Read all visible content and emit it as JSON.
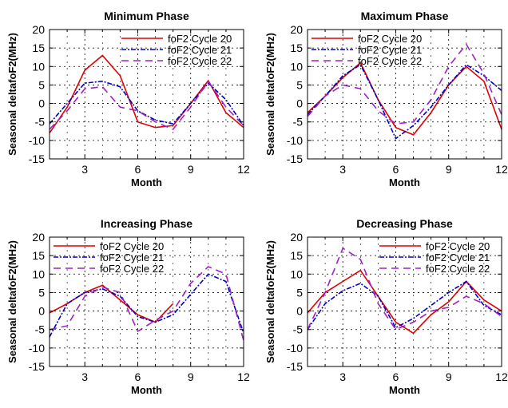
{
  "chart_data": [
    {
      "type": "line",
      "title": "Minimum Phase",
      "xlabel": "Month",
      "ylabel": "Seasonal deltafoF2(MHz)",
      "xlim": [
        1,
        12
      ],
      "ylim": [
        -15,
        20
      ],
      "xticks": [
        3,
        6,
        9,
        12
      ],
      "yticks": [
        -15,
        -10,
        -5,
        0,
        5,
        10,
        15,
        20
      ],
      "grid": true,
      "legend_position": "top-right",
      "x": [
        1,
        2,
        3,
        4,
        5,
        6,
        7,
        8,
        9,
        10,
        11,
        12
      ],
      "series": [
        {
          "name": "foF2 Cycle 20",
          "color": "#e00000",
          "dash": "solid",
          "values": [
            -8,
            -1,
            9,
            13,
            7.5,
            -5,
            -6.5,
            -6,
            0,
            6.2,
            -2.5,
            -6.5
          ]
        },
        {
          "name": "foF2 Cycle 21",
          "color": "#0000c8",
          "dash": "dot-dash",
          "values": [
            -5.5,
            0,
            5.5,
            6,
            4.5,
            -2,
            -4.5,
            -5.5,
            0,
            5.5,
            1,
            -6
          ]
        },
        {
          "name": "foF2 Cycle 22",
          "color": "#a020c0",
          "dash": "dashed",
          "values": [
            -7,
            -2,
            4,
            4.5,
            -1,
            -2,
            -5,
            -7,
            -1,
            6,
            -1,
            -6
          ]
        }
      ]
    },
    {
      "type": "line",
      "title": "Maximum Phase",
      "xlabel": "Month",
      "ylabel": "Seasonal deltafoF2(MHz)",
      "xlim": [
        1,
        12
      ],
      "ylim": [
        -15,
        20
      ],
      "xticks": [
        3,
        6,
        9,
        12
      ],
      "yticks": [
        -15,
        -10,
        -5,
        0,
        5,
        10,
        15,
        20
      ],
      "grid": true,
      "legend_position": "top-left",
      "x": [
        1,
        2,
        3,
        4,
        5,
        6,
        7,
        8,
        9,
        10,
        11,
        12
      ],
      "series": [
        {
          "name": "foF2 Cycle 20",
          "color": "#e00000",
          "dash": "solid",
          "values": [
            -2.5,
            2,
            7,
            11,
            1,
            -6.5,
            -8.5,
            -2.5,
            5,
            10,
            6,
            -7
          ]
        },
        {
          "name": "foF2 Cycle 21",
          "color": "#0000c8",
          "dash": "dot-dash",
          "values": [
            -3,
            2,
            7.5,
            10.5,
            1,
            -9.5,
            -6,
            -1,
            5,
            10.5,
            7.5,
            3.5
          ]
        },
        {
          "name": "foF2 Cycle 22",
          "color": "#a020c0",
          "dash": "dashed",
          "values": [
            -3.5,
            2,
            5,
            4,
            -2,
            -5.5,
            -5,
            1,
            10,
            16,
            8,
            -3
          ]
        }
      ]
    },
    {
      "type": "line",
      "title": "Increasing Phase",
      "xlabel": "Month",
      "ylabel": "Seasonal deltafoF2(MHz)",
      "xlim": [
        1,
        12
      ],
      "ylim": [
        -15,
        20
      ],
      "xticks": [
        3,
        6,
        9,
        12
      ],
      "yticks": [
        -15,
        -10,
        -5,
        0,
        5,
        10,
        15,
        20
      ],
      "grid": true,
      "legend_position": "top-left",
      "x": [
        1,
        2,
        3,
        4,
        5,
        6,
        7,
        8,
        9,
        10,
        11,
        12
      ],
      "series": [
        {
          "name": "foF2 Cycle 20",
          "color": "#e00000",
          "dash": "solid",
          "values": [
            -0.5,
            2,
            5,
            7,
            3,
            -1,
            -3,
            2,
            null,
            null,
            null,
            null
          ]
        },
        {
          "name": "foF2 Cycle 21",
          "color": "#0000c8",
          "dash": "dot-dash",
          "values": [
            -7,
            2,
            5,
            6,
            4,
            -1.5,
            -3,
            -1,
            4.5,
            10,
            8,
            -6
          ]
        },
        {
          "name": "foF2 Cycle 22",
          "color": "#a020c0",
          "dash": "dashed",
          "values": [
            -5,
            -4,
            4,
            6.5,
            5,
            -5.5,
            -2.5,
            0,
            7.5,
            12,
            10,
            -8
          ]
        }
      ]
    },
    {
      "type": "line",
      "title": "Decreasing Phase",
      "xlabel": "Month",
      "ylabel": "Seasonal deltafoF2(MHz)",
      "xlim": [
        1,
        12
      ],
      "ylim": [
        -15,
        20
      ],
      "xticks": [
        3,
        6,
        9,
        12
      ],
      "yticks": [
        -15,
        -10,
        -5,
        0,
        5,
        10,
        15,
        20
      ],
      "grid": true,
      "legend_position": "top-right",
      "x": [
        1,
        2,
        3,
        4,
        5,
        6,
        7,
        8,
        9,
        10,
        11,
        12
      ],
      "series": [
        {
          "name": "foF2 Cycle 20",
          "color": "#e00000",
          "dash": "solid",
          "values": [
            -0.5,
            5,
            8,
            11,
            4,
            -3,
            -6,
            -1,
            2.5,
            8,
            3,
            0
          ]
        },
        {
          "name": "foF2 Cycle 21",
          "color": "#0000c8",
          "dash": "dot-dash",
          "values": [
            -5,
            2,
            5.5,
            7.5,
            4,
            -4.5,
            -2,
            1.5,
            5,
            8,
            1.5,
            -1
          ]
        },
        {
          "name": "foF2 Cycle 22",
          "color": "#a020c0",
          "dash": "dashed",
          "values": [
            -5,
            5,
            17,
            14,
            2,
            -5,
            -3,
            0,
            1,
            4,
            2,
            -1.5
          ]
        }
      ]
    }
  ]
}
